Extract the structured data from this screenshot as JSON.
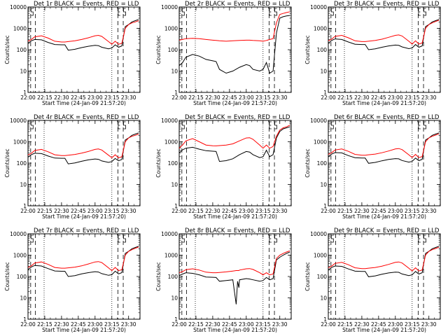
{
  "common": {
    "xlabel": "Start Time (24-Jan-09 21:57:20)",
    "ylabel": "Counts/sec",
    "x_tick_labels": [
      "22:00",
      "22:15",
      "22:30",
      "22:45",
      "23:00",
      "23:15",
      "23:30"
    ],
    "y_tick_labels": [
      "1",
      "10",
      "100",
      "1000",
      "10000"
    ],
    "xlim_hours": [
      22.0,
      23.67
    ],
    "ylim": [
      1,
      10000
    ],
    "y_scale": "log",
    "colors": {
      "events": "#000000",
      "lld": "#ff0000"
    }
  },
  "chart_data": [
    {
      "type": "line",
      "title": "Det 1r BLACK = Events, RED = LLD",
      "x": [
        22.0,
        22.05,
        22.1,
        22.2,
        22.3,
        22.4,
        22.5,
        22.55,
        22.6,
        22.7,
        22.8,
        22.9,
        23.0,
        23.05,
        23.1,
        23.2,
        23.25,
        23.3,
        23.35,
        23.4,
        23.45,
        23.5,
        23.55,
        23.6,
        23.65
      ],
      "series": [
        {
          "values": [
            200,
            260,
            300,
            290,
            220,
            175,
            170,
            170,
            95,
            105,
            125,
            145,
            160,
            155,
            130,
            110,
            120,
            170,
            130,
            150,
            1200,
            1500,
            2000,
            2300,
            2600
          ]
        },
        {
          "values": [
            250,
            300,
            400,
            450,
            350,
            250,
            230,
            230,
            240,
            260,
            300,
            360,
            450,
            470,
            420,
            240,
            180,
            250,
            180,
            200,
            1000,
            1500,
            1800,
            2000,
            2300
          ]
        }
      ]
    },
    {
      "type": "line",
      "title": "Det 2r BLACK = Events, RED = LLD",
      "x": [
        22.0,
        22.05,
        22.1,
        22.2,
        22.3,
        22.4,
        22.5,
        22.55,
        22.6,
        22.7,
        22.8,
        22.9,
        23.0,
        23.05,
        23.1,
        23.2,
        23.25,
        23.3,
        23.35,
        23.4,
        23.45,
        23.5,
        23.55,
        23.6,
        23.65
      ],
      "series": [
        {
          "values": [
            18,
            25,
            45,
            60,
            50,
            35,
            30,
            28,
            12,
            8,
            10,
            15,
            20,
            18,
            12,
            10,
            12,
            25,
            8,
            10,
            600,
            3000,
            3500,
            3800,
            4000
          ]
        },
        {
          "values": [
            280,
            300,
            330,
            340,
            330,
            300,
            280,
            270,
            260,
            250,
            260,
            270,
            280,
            280,
            270,
            260,
            250,
            270,
            300,
            330,
            1800,
            4500,
            5000,
            5500,
            6000
          ]
        }
      ]
    },
    {
      "type": "line",
      "title": "Det 3r BLACK = Events, RED = LLD",
      "x": [
        22.0,
        22.05,
        22.1,
        22.2,
        22.3,
        22.4,
        22.5,
        22.55,
        22.6,
        22.7,
        22.8,
        22.9,
        23.0,
        23.05,
        23.1,
        23.2,
        23.25,
        23.3,
        23.35,
        23.4,
        23.45,
        23.5,
        23.55,
        23.6,
        23.65
      ],
      "series": [
        {
          "values": [
            200,
            270,
            320,
            300,
            230,
            180,
            175,
            175,
            100,
            110,
            130,
            150,
            165,
            160,
            135,
            112,
            120,
            175,
            130,
            150,
            1200,
            1500,
            2000,
            2300,
            2600
          ]
        },
        {
          "values": [
            260,
            310,
            420,
            470,
            360,
            260,
            240,
            240,
            250,
            270,
            310,
            380,
            470,
            490,
            440,
            250,
            185,
            260,
            185,
            205,
            1000,
            1500,
            1800,
            2100,
            2400
          ]
        }
      ]
    },
    {
      "type": "line",
      "title": "Det 4r BLACK = Events, RED = LLD",
      "x": [
        22.0,
        22.05,
        22.1,
        22.2,
        22.3,
        22.4,
        22.5,
        22.55,
        22.6,
        22.7,
        22.8,
        22.9,
        23.0,
        23.05,
        23.1,
        23.2,
        23.25,
        23.3,
        23.35,
        23.4,
        23.45,
        23.5,
        23.55,
        23.6,
        23.65
      ],
      "series": [
        {
          "values": [
            190,
            250,
            290,
            280,
            215,
            172,
            168,
            168,
            92,
            102,
            122,
            142,
            156,
            150,
            126,
            108,
            118,
            165,
            128,
            148,
            1200,
            1500,
            2000,
            2300,
            2600
          ]
        },
        {
          "values": [
            240,
            290,
            390,
            440,
            340,
            245,
            225,
            225,
            235,
            255,
            295,
            350,
            440,
            460,
            410,
            235,
            178,
            245,
            178,
            198,
            1000,
            1500,
            1800,
            2000,
            2300
          ]
        }
      ]
    },
    {
      "type": "line",
      "title": "Det 5r BLACK = Events, RED = LLD",
      "x": [
        22.0,
        22.05,
        22.1,
        22.2,
        22.3,
        22.4,
        22.5,
        22.55,
        22.6,
        22.7,
        22.8,
        22.9,
        23.0,
        23.05,
        23.1,
        23.2,
        23.25,
        23.3,
        23.35,
        23.4,
        23.45,
        23.5,
        23.55,
        23.6,
        23.65
      ],
      "series": [
        {
          "values": [
            300,
            420,
            500,
            550,
            450,
            380,
            360,
            350,
            120,
            130,
            160,
            250,
            350,
            330,
            250,
            180,
            200,
            400,
            200,
            250,
            1500,
            3000,
            4000,
            4500,
            5000
          ]
        },
        {
          "values": [
            500,
            700,
            1100,
            1400,
            1000,
            700,
            650,
            640,
            660,
            700,
            800,
            1100,
            1500,
            1550,
            1300,
            700,
            500,
            700,
            500,
            600,
            1800,
            3500,
            4500,
            5000,
            6000
          ]
        }
      ]
    },
    {
      "type": "line",
      "title": "Det 6r BLACK = Events, RED = LLD",
      "x": [
        22.0,
        22.05,
        22.1,
        22.2,
        22.3,
        22.4,
        22.5,
        22.55,
        22.6,
        22.7,
        22.8,
        22.9,
        23.0,
        23.05,
        23.1,
        23.2,
        23.25,
        23.3,
        23.35,
        23.4,
        23.45,
        23.5,
        23.55,
        23.6,
        23.65
      ],
      "series": [
        {
          "values": [
            200,
            265,
            310,
            300,
            225,
            178,
            172,
            172,
            98,
            108,
            128,
            148,
            162,
            158,
            132,
            111,
            120,
            172,
            130,
            150,
            1200,
            1500,
            2000,
            2300,
            2600
          ]
        },
        {
          "values": [
            255,
            305,
            410,
            460,
            355,
            255,
            235,
            235,
            245,
            265,
            305,
            370,
            460,
            480,
            430,
            245,
            182,
            255,
            182,
            202,
            1000,
            1500,
            1800,
            2050,
            2350
          ]
        }
      ]
    },
    {
      "type": "line",
      "title": "Det 7r BLACK = Events, RED = LLD",
      "x": [
        22.0,
        22.05,
        22.1,
        22.2,
        22.3,
        22.4,
        22.5,
        22.55,
        22.6,
        22.7,
        22.8,
        22.9,
        23.0,
        23.05,
        23.1,
        23.2,
        23.25,
        23.3,
        23.35,
        23.4,
        23.45,
        23.5,
        23.55,
        23.6,
        23.65
      ],
      "series": [
        {
          "values": [
            210,
            280,
            330,
            310,
            235,
            182,
            176,
            176,
            100,
            110,
            132,
            152,
            168,
            162,
            136,
            114,
            122,
            178,
            132,
            152,
            1200,
            1500,
            2000,
            2300,
            2600
          ]
        },
        {
          "values": [
            265,
            315,
            430,
            480,
            370,
            265,
            245,
            245,
            255,
            275,
            315,
            385,
            480,
            500,
            450,
            255,
            188,
            265,
            188,
            208,
            1000,
            1500,
            1800,
            2100,
            2400
          ]
        }
      ]
    },
    {
      "type": "line",
      "title": "Det 8r BLACK = Events, RED = LLD",
      "x": [
        22.0,
        22.05,
        22.1,
        22.2,
        22.3,
        22.4,
        22.5,
        22.55,
        22.6,
        22.7,
        22.8,
        22.85,
        22.87,
        22.89,
        22.9,
        23.0,
        23.05,
        23.1,
        23.2,
        23.25,
        23.3,
        23.35,
        23.4,
        23.45,
        23.5,
        23.55,
        23.6,
        23.65
      ],
      "series": [
        {
          "values": [
            110,
            130,
            150,
            140,
            120,
            95,
            92,
            90,
            60,
            65,
            70,
            5,
            60,
            30,
            70,
            80,
            76,
            70,
            60,
            65,
            90,
            70,
            80,
            600,
            800,
            1000,
            1200,
            1400
          ]
        },
        {
          "values": [
            150,
            170,
            210,
            230,
            200,
            160,
            150,
            150,
            155,
            165,
            180,
            190,
            190,
            190,
            200,
            230,
            235,
            215,
            150,
            120,
            150,
            120,
            130,
            700,
            1000,
            1200,
            1400,
            1600
          ]
        }
      ]
    },
    {
      "type": "line",
      "title": "Det 9r BLACK = Events, RED = LLD",
      "x": [
        22.0,
        22.05,
        22.1,
        22.2,
        22.3,
        22.4,
        22.5,
        22.55,
        22.6,
        22.7,
        22.8,
        22.9,
        23.0,
        23.05,
        23.1,
        23.2,
        23.25,
        23.3,
        23.35,
        23.4,
        23.45,
        23.5,
        23.55,
        23.6,
        23.65
      ],
      "series": [
        {
          "values": [
            200,
            265,
            310,
            298,
            226,
            178,
            173,
            173,
            97,
            107,
            127,
            147,
            161,
            157,
            131,
            110,
            120,
            172,
            130,
            150,
            1200,
            1500,
            2000,
            2300,
            2600
          ]
        },
        {
          "values": [
            255,
            305,
            410,
            460,
            355,
            255,
            235,
            235,
            245,
            265,
            305,
            370,
            460,
            480,
            430,
            245,
            182,
            255,
            182,
            202,
            1000,
            1500,
            1800,
            2050,
            2350
          ]
        }
      ]
    }
  ]
}
